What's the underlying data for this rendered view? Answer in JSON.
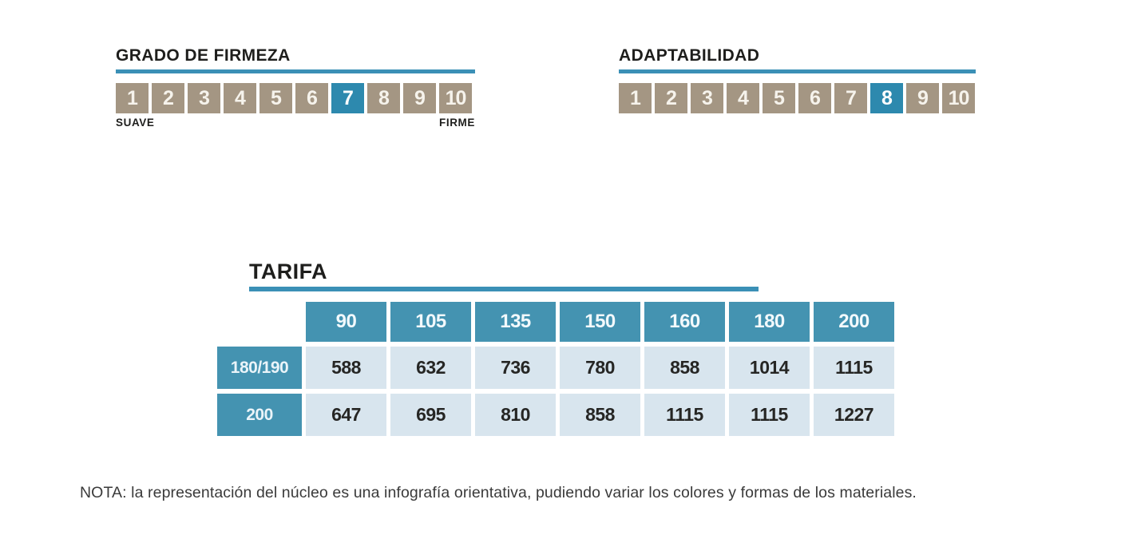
{
  "colors": {
    "accent": "#2d89ae",
    "accent_line": "#3b90b6",
    "table_header": "#4493b1",
    "box_tan": "#a49683",
    "cell_light": "#d8e5ee"
  },
  "scales": [
    {
      "title": "GRADO DE FIRMEZA",
      "min": 1,
      "max": 10,
      "selected": 7,
      "left_label": "SUAVE",
      "right_label": "FIRME"
    },
    {
      "title": "ADAPTABILIDAD",
      "min": 1,
      "max": 10,
      "selected": 8
    }
  ],
  "tarifa": {
    "title": "TARIFA",
    "columns": [
      "90",
      "105",
      "135",
      "150",
      "160",
      "180",
      "200"
    ],
    "rows": [
      {
        "label": "180/190",
        "values": [
          "588",
          "632",
          "736",
          "780",
          "858",
          "1014",
          "1115"
        ]
      },
      {
        "label": "200",
        "values": [
          "647",
          "695",
          "810",
          "858",
          "1115",
          "1115",
          "1227"
        ]
      }
    ]
  },
  "note": "NOTA: la representación del núcleo es una infografía orientativa, pudiendo variar los colores y formas de los materiales."
}
